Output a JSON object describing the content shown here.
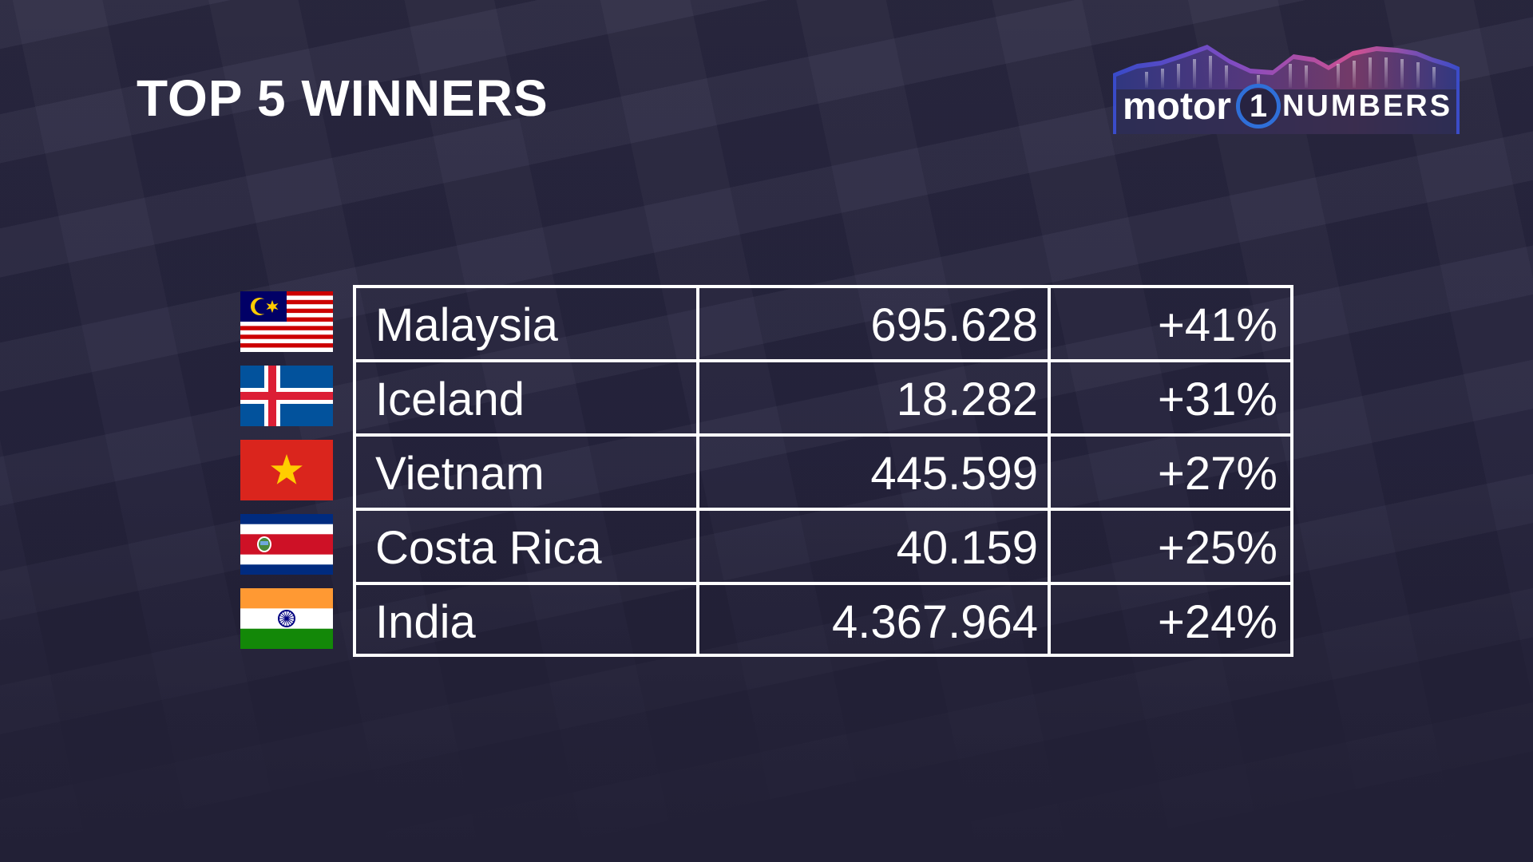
{
  "title": "TOP 5 WINNERS",
  "logo": {
    "motor": "motor",
    "one": "1",
    "numbers": "NUMBERS",
    "colors": [
      "#3a4fd8",
      "#8a4fd0",
      "#e0559a",
      "#f07a7a"
    ]
  },
  "rows": [
    {
      "country": "Malaysia",
      "sales": "695.628",
      "growth": "+41%",
      "flag": "malaysia-flag-icon"
    },
    {
      "country": "Iceland",
      "sales": "18.282",
      "growth": "+31%",
      "flag": "iceland-flag-icon"
    },
    {
      "country": "Vietnam",
      "sales": "445.599",
      "growth": "+27%",
      "flag": "vietnam-flag-icon"
    },
    {
      "country": "Costa Rica",
      "sales": "40.159",
      "growth": "+25%",
      "flag": "costa-rica-flag-icon"
    },
    {
      "country": "India",
      "sales": "4.367.964",
      "growth": "+24%",
      "flag": "india-flag-icon"
    }
  ]
}
